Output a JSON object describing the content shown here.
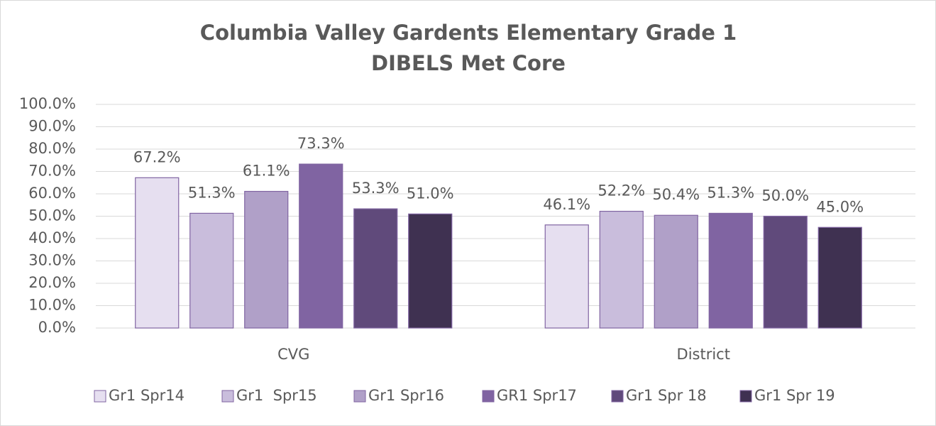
{
  "chart_data": {
    "type": "bar",
    "title": [
      "Columbia Valley Gardents Elementary Grade 1",
      "DIBELS Met Core"
    ],
    "categories": [
      "CVG",
      "District"
    ],
    "series": [
      {
        "name": "Gr1 Spr14",
        "color": "#e6dff0",
        "values": [
          67.2,
          46.1
        ],
        "value_labels": [
          "67.2%",
          "46.1%"
        ]
      },
      {
        "name": "Gr1  Spr15",
        "color": "#c9bddc",
        "values": [
          51.3,
          52.2
        ],
        "value_labels": [
          "51.3%",
          "52.2%"
        ]
      },
      {
        "name": "Gr1 Spr16",
        "color": "#b0a0c8",
        "values": [
          61.1,
          50.4
        ],
        "value_labels": [
          "61.1%",
          "50.4%"
        ]
      },
      {
        "name": "GR1 Spr17",
        "color": "#8064a2",
        "values": [
          73.3,
          51.3
        ],
        "value_labels": [
          "73.3%",
          "51.3%"
        ]
      },
      {
        "name": "Gr1 Spr 18",
        "color": "#604a7b",
        "values": [
          53.3,
          50.0
        ],
        "value_labels": [
          "53.3%",
          "50.0%"
        ]
      },
      {
        "name": "Gr1 Spr 19",
        "color": "#3f3151",
        "values": [
          51.0,
          45.0
        ],
        "value_labels": [
          "51.0%",
          "45.0%"
        ]
      }
    ],
    "ylim": [
      0,
      100
    ],
    "yticks": [
      {
        "value": 0,
        "label": "0.0%"
      },
      {
        "value": 10,
        "label": "10.0%"
      },
      {
        "value": 20,
        "label": "20.0%"
      },
      {
        "value": 30,
        "label": "30.0%"
      },
      {
        "value": 40,
        "label": "40.0%"
      },
      {
        "value": 50,
        "label": "50.0%"
      },
      {
        "value": 60,
        "label": "60.0%"
      },
      {
        "value": 70,
        "label": "70.0%"
      },
      {
        "value": 80,
        "label": "80.0%"
      },
      {
        "value": 90,
        "label": "90.0%"
      },
      {
        "value": 100,
        "label": "100.0%"
      }
    ],
    "grid": true,
    "legend": "bottom"
  }
}
